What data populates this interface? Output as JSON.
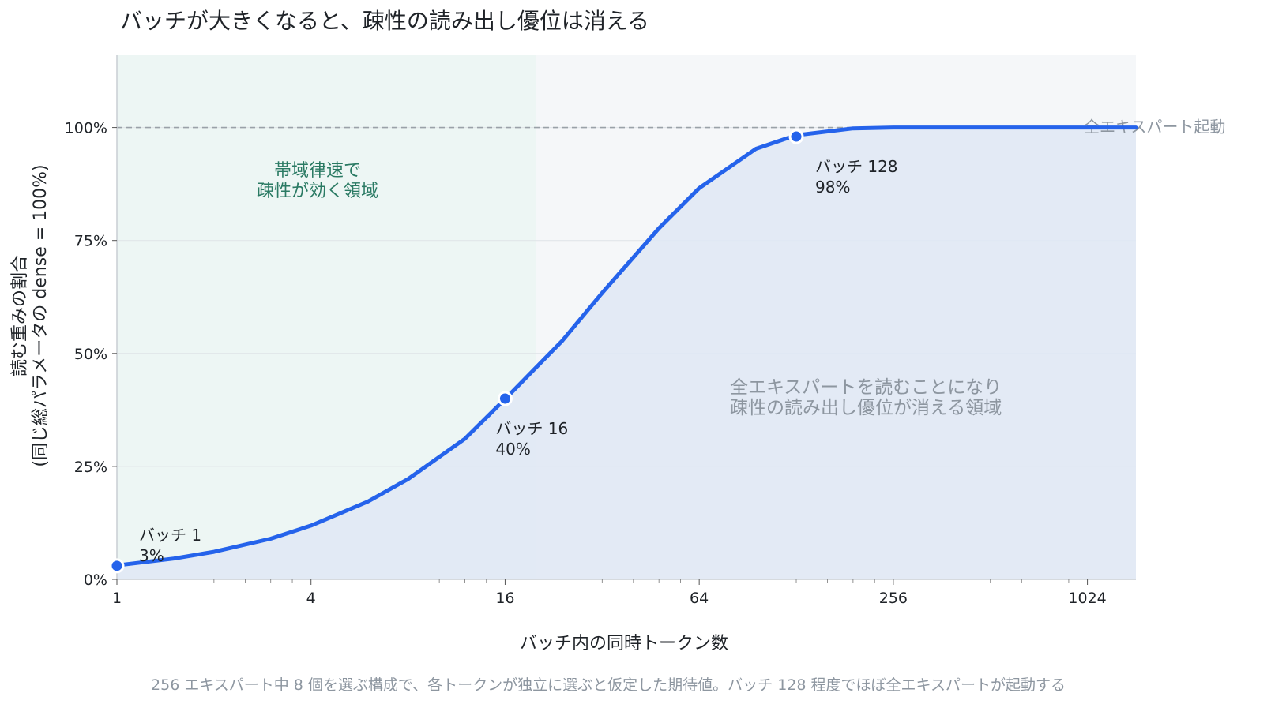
{
  "chart_data": {
    "type": "line",
    "title": "バッチが大きくなると、疎性の読み出し優位は消える",
    "xlabel": "バッチ内の同時トークン数",
    "ylabel_line1": "読む重みの割合",
    "ylabel_line2": "(同じ総パラメータの dense = 100%)",
    "x_scale": "log2",
    "xlim": [
      1,
      1448
    ],
    "ylim": [
      0,
      1.16
    ],
    "x_ticks": [
      1,
      4,
      16,
      64,
      256,
      1024
    ],
    "x_tick_labels": [
      "1",
      "4",
      "16",
      "64",
      "256",
      "1024"
    ],
    "y_ticks": [
      0,
      0.25,
      0.5,
      0.75,
      1.0
    ],
    "y_tick_labels": [
      "0%",
      "25%",
      "50%",
      "75%",
      "100%"
    ],
    "grid": "horizontal",
    "series": [
      {
        "experts_total": 256,
        "experts_selected": 8,
        "x": [
          1,
          1.5,
          2,
          3,
          4,
          6,
          8,
          12,
          16,
          24,
          32,
          48,
          64,
          96,
          128,
          192,
          256,
          384,
          512,
          768,
          1024,
          1448
        ],
        "y": [
          0.031,
          0.046,
          0.061,
          0.09,
          0.119,
          0.172,
          0.222,
          0.311,
          0.399,
          0.527,
          0.634,
          0.777,
          0.866,
          0.953,
          0.983,
          0.998,
          1.0,
          1.0,
          1.0,
          1.0,
          1.0,
          1.0
        ]
      }
    ],
    "highlighted_points": [
      {
        "x": 1,
        "y": 0.03,
        "label": "バッチ 1",
        "value_label": "3%"
      },
      {
        "x": 16,
        "y": 0.4,
        "label": "バッチ 16",
        "value_label": "40%"
      },
      {
        "x": 128,
        "y": 0.98,
        "label": "バッチ 128",
        "value_label": "98%"
      }
    ],
    "reference_line": {
      "y": 1.0,
      "label": "全エキスパート起動"
    },
    "regions": [
      {
        "x_range": [
          1,
          20
        ],
        "lines": [
          "帯域律速で",
          "疎性が効く領域"
        ],
        "color": "#2a7a63"
      },
      {
        "x_range": [
          20,
          1448
        ],
        "lines": [
          "全エキスパートを読むことになり",
          "疎性の読み出し優位が消える領域"
        ],
        "color": "#8d96a0"
      }
    ],
    "caption": "256 エキスパート中 8 個を選ぶ構成で、各トークンが独立に選ぶと仮定した期待値。バッチ 128 程度でほぼ全エキスパートが起動する",
    "colors": {
      "line": "#2563eb",
      "fill": "#dfe8f5",
      "green_region": "#edf6f4",
      "plot_bg": "#f5f7f9",
      "reference": "#9aa1a8"
    }
  }
}
